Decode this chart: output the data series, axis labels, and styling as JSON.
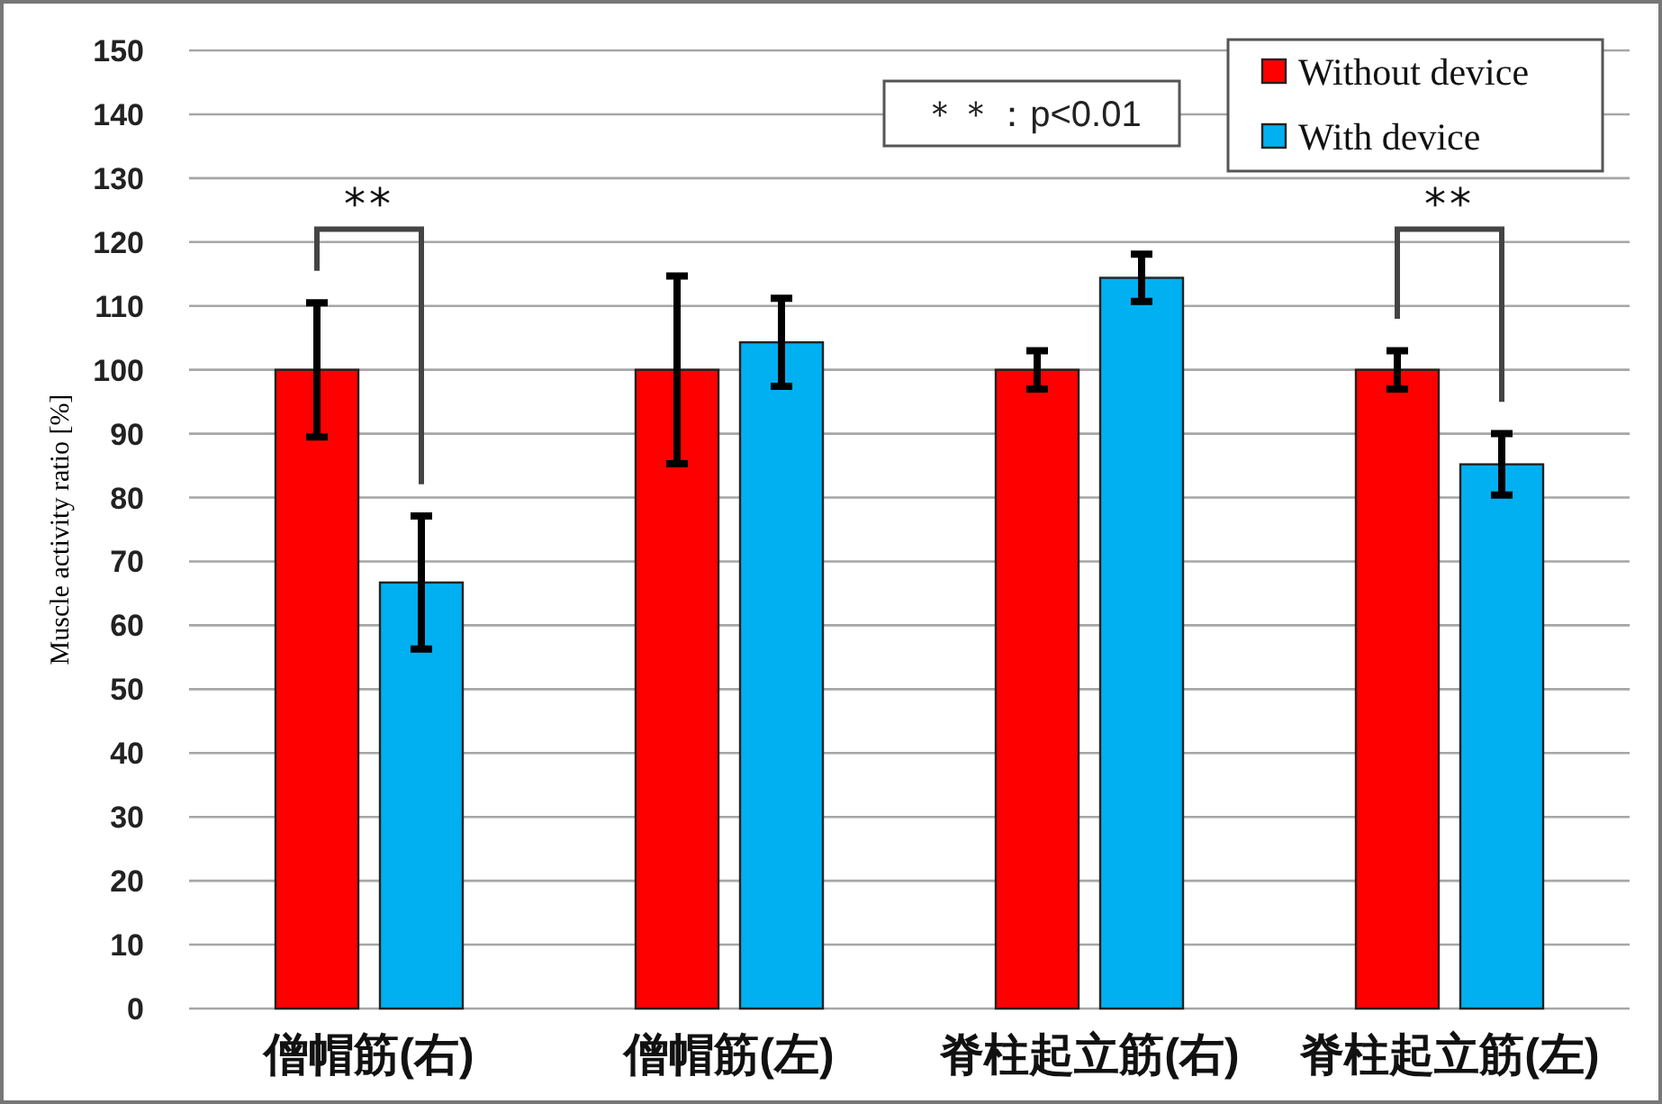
{
  "chart_data": {
    "type": "bar",
    "ylabel": "Muscle activity ratio [%]",
    "categories": [
      "僧帽筋(右)",
      "僧帽筋(左)",
      "脊柱起立筋(右)",
      "脊柱起立筋(左)"
    ],
    "series": [
      {
        "name": "Without device",
        "color": "#ff0000",
        "values": [
          100,
          100,
          100,
          100
        ],
        "errors": [
          10.5,
          14.7,
          3,
          3
        ]
      },
      {
        "name": "With device",
        "color": "#00b0f0",
        "values": [
          66.7,
          104.3,
          114.4,
          85.2
        ],
        "errors": [
          10.4,
          6.9,
          3.7,
          4.8
        ]
      }
    ],
    "ylim": [
      0,
      150
    ],
    "yticks": [
      0,
      10,
      20,
      30,
      40,
      50,
      60,
      70,
      80,
      90,
      100,
      110,
      120,
      130,
      140,
      150
    ],
    "grid": "y",
    "legend": "top right",
    "annotations": [
      "**",
      "**",
      "＊＊：p<0.01"
    ]
  }
}
